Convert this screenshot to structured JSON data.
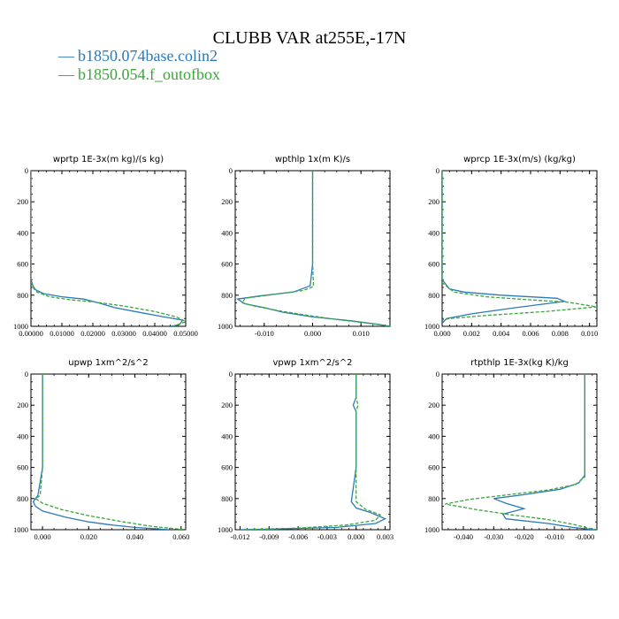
{
  "figure": {
    "title": "CLUBB VAR at255E,-17N",
    "legend": [
      {
        "name": "b1850.074base.colin2",
        "color": "#2a7ab9",
        "dash": "solid",
        "symbol": "—"
      },
      {
        "name": "b1850.054.f_outofbox",
        "color": "#3aa63a",
        "dash": "dashed",
        "symbol": "—"
      }
    ]
  },
  "chart_data": [
    {
      "type": "line",
      "title": "wprtp  1E-3x(m kg)/(s kg)",
      "xlim": [
        0,
        0.05
      ],
      "ylim": [
        1000,
        0
      ],
      "xticks": [
        0,
        0.01,
        0.02,
        0.03,
        0.04,
        0.05
      ],
      "xtick_labels": [
        "0.00000",
        "0.01000",
        "0.02000",
        "0.03000",
        "0.04000",
        "0.05000"
      ],
      "yticks": [
        0,
        200,
        400,
        600,
        800,
        1000
      ],
      "ytick_labels": [
        "0",
        "200",
        "400",
        "600",
        "800",
        "1000"
      ],
      "series": [
        {
          "values": [
            [
              0,
              0
            ],
            [
              0,
              500
            ],
            [
              0,
              700
            ],
            [
              0.001,
              760
            ],
            [
              0.004,
              790
            ],
            [
              0.01,
              810
            ],
            [
              0.017,
              825
            ],
            [
              0.022,
              850
            ],
            [
              0.027,
              880
            ],
            [
              0.035,
              910
            ],
            [
              0.043,
              940
            ],
            [
              0.049,
              960
            ],
            [
              0.048,
              990
            ],
            [
              0.045,
              1000
            ]
          ]
        },
        {
          "values": [
            [
              0,
              0
            ],
            [
              0,
              500
            ],
            [
              0,
              720
            ],
            [
              0.002,
              780
            ],
            [
              0.006,
              810
            ],
            [
              0.013,
              830
            ],
            [
              0.021,
              845
            ],
            [
              0.03,
              870
            ],
            [
              0.04,
              905
            ],
            [
              0.047,
              940
            ],
            [
              0.05,
              970
            ],
            [
              0.046,
              1000
            ]
          ]
        }
      ]
    },
    {
      "type": "line",
      "title": "wpthlp  1x(m K)/s",
      "xlim": [
        -0.016,
        0.016
      ],
      "ylim": [
        1000,
        0
      ],
      "xticks": [
        -0.01,
        0,
        0.01
      ],
      "xtick_labels": [
        "-0.010",
        "0.000",
        "0.010"
      ],
      "yticks": [
        0,
        200,
        400,
        600,
        800,
        1000
      ],
      "ytick_labels": [
        "0",
        "200",
        "400",
        "600",
        "800",
        "1000"
      ],
      "series": [
        {
          "values": [
            [
              0,
              0
            ],
            [
              0,
              300
            ],
            [
              0,
              600
            ],
            [
              -0.0005,
              740
            ],
            [
              -0.004,
              780
            ],
            [
              -0.011,
              805
            ],
            [
              -0.0155,
              825
            ],
            [
              -0.014,
              855
            ],
            [
              -0.01,
              880
            ],
            [
              -0.006,
              910
            ],
            [
              0,
              940
            ],
            [
              0.008,
              965
            ],
            [
              0.014,
              990
            ],
            [
              0.016,
              1000
            ]
          ]
        },
        {
          "values": [
            [
              0,
              0
            ],
            [
              0,
              300
            ],
            [
              0,
              600
            ],
            [
              0.0002,
              745
            ],
            [
              -0.002,
              770
            ],
            [
              -0.008,
              795
            ],
            [
              -0.014,
              820
            ],
            [
              -0.0145,
              850
            ],
            [
              -0.012,
              870
            ],
            [
              -0.007,
              900
            ],
            [
              -0.001,
              930
            ],
            [
              0.006,
              960
            ],
            [
              0.013,
              985
            ],
            [
              0.016,
              1000
            ]
          ]
        }
      ]
    },
    {
      "type": "line",
      "title": "wprcp  1E-3x(m/s) (kg/kg)",
      "xlim": [
        0,
        0.0105
      ],
      "ylim": [
        1000,
        0
      ],
      "xticks": [
        0,
        0.002,
        0.004,
        0.006,
        0.008,
        0.01
      ],
      "xtick_labels": [
        "0.000",
        "0.002",
        "0.004",
        "0.006",
        "0.008",
        "0.010"
      ],
      "yticks": [
        0,
        200,
        400,
        600,
        800,
        1000
      ],
      "ytick_labels": [
        "0",
        "200",
        "400",
        "600",
        "800",
        "1000"
      ],
      "series": [
        {
          "values": [
            [
              0,
              0
            ],
            [
              0,
              500
            ],
            [
              0,
              700
            ],
            [
              0.0005,
              760
            ],
            [
              0.0015,
              780
            ],
            [
              0.004,
              800
            ],
            [
              0.0078,
              820
            ],
            [
              0.0083,
              840
            ],
            [
              0.005,
              880
            ],
            [
              0.002,
              920
            ],
            [
              0.0003,
              950
            ],
            [
              0,
              980
            ]
          ]
        },
        {
          "values": [
            [
              0,
              0
            ],
            [
              0,
              500
            ],
            [
              0,
              720
            ],
            [
              0.0008,
              780
            ],
            [
              0.003,
              810
            ],
            [
              0.006,
              830
            ],
            [
              0.0085,
              845
            ],
            [
              0.0105,
              875
            ],
            [
              0.007,
              905
            ],
            [
              0.003,
              930
            ],
            [
              0.0005,
              950
            ],
            [
              0,
              960
            ]
          ]
        }
      ]
    },
    {
      "type": "line",
      "title": "upwp  1xm^2/s^2",
      "xlim": [
        -0.005,
        0.062
      ],
      "ylim": [
        1000,
        0
      ],
      "xticks": [
        0,
        0.02,
        0.04,
        0.06
      ],
      "xtick_labels": [
        "0.000",
        "0.020",
        "0.040",
        "0.060"
      ],
      "yticks": [
        0,
        200,
        400,
        600,
        800,
        1000
      ],
      "ytick_labels": [
        "0",
        "200",
        "400",
        "600",
        "800",
        "1000"
      ],
      "series": [
        {
          "values": [
            [
              0,
              0
            ],
            [
              0,
              200
            ],
            [
              0,
              600
            ],
            [
              -0.002,
              780
            ],
            [
              -0.004,
              820
            ],
            [
              -0.003,
              850
            ],
            [
              0,
              880
            ],
            [
              0.01,
              920
            ],
            [
              0.02,
              950
            ],
            [
              0.03,
              970
            ],
            [
              0.04,
              985
            ],
            [
              0.05,
              995
            ],
            [
              0.055,
              1000
            ]
          ]
        },
        {
          "values": [
            [
              0,
              0
            ],
            [
              0,
              200
            ],
            [
              0,
              600
            ],
            [
              -0.001,
              780
            ],
            [
              -0.003,
              800
            ],
            [
              0,
              830
            ],
            [
              0.008,
              870
            ],
            [
              0.02,
              910
            ],
            [
              0.035,
              950
            ],
            [
              0.048,
              980
            ],
            [
              0.062,
              1000
            ]
          ]
        }
      ]
    },
    {
      "type": "line",
      "title": "vpwp  1xm^2/s^2",
      "xlim": [
        -0.0125,
        0.0035
      ],
      "ylim": [
        1000,
        0
      ],
      "xticks": [
        -0.012,
        -0.009,
        -0.006,
        -0.003,
        0,
        0.003
      ],
      "xtick_labels": [
        "-0.012",
        "-0.009",
        "-0.006",
        "-0.003",
        "0.000",
        "0.003"
      ],
      "yticks": [
        0,
        200,
        400,
        600,
        800,
        1000
      ],
      "ytick_labels": [
        "0",
        "200",
        "400",
        "600",
        "800",
        "1000"
      ],
      "series": [
        {
          "values": [
            [
              0,
              0
            ],
            [
              0,
              150
            ],
            [
              -0.0003,
              200
            ],
            [
              0,
              240
            ],
            [
              0,
              600
            ],
            [
              -0.0005,
              820
            ],
            [
              0,
              860
            ],
            [
              0.0015,
              890
            ],
            [
              0.003,
              930
            ],
            [
              0.002,
              960
            ],
            [
              -0.002,
              985
            ],
            [
              -0.008,
              995
            ],
            [
              -0.012,
              1000
            ]
          ]
        },
        {
          "values": [
            [
              0,
              0
            ],
            [
              0,
              150
            ],
            [
              0.0002,
              200
            ],
            [
              0,
              240
            ],
            [
              0,
              600
            ],
            [
              0,
              820
            ],
            [
              0.001,
              870
            ],
            [
              0.0025,
              905
            ],
            [
              0.002,
              940
            ],
            [
              -0.001,
              970
            ],
            [
              -0.006,
              990
            ],
            [
              -0.0115,
              1000
            ]
          ]
        }
      ]
    },
    {
      "type": "line",
      "title": "rtpthlp  1E-3x(kg K)/kg",
      "xlim": [
        -0.047,
        0.004
      ],
      "ylim": [
        1000,
        0
      ],
      "xticks": [
        -0.04,
        -0.03,
        -0.02,
        -0.01,
        0
      ],
      "xtick_labels": [
        "-0.040",
        "-0.030",
        "-0.020",
        "-0.010",
        "-0.000"
      ],
      "yticks": [
        0,
        200,
        400,
        600,
        800,
        1000
      ],
      "ytick_labels": [
        "0",
        "200",
        "400",
        "600",
        "800",
        "1000"
      ],
      "series": [
        {
          "values": [
            [
              0,
              0
            ],
            [
              0,
              400
            ],
            [
              0,
              650
            ],
            [
              -0.002,
              700
            ],
            [
              -0.008,
              740
            ],
            [
              -0.02,
              775
            ],
            [
              -0.03,
              800
            ],
            [
              -0.026,
              830
            ],
            [
              -0.02,
              865
            ],
            [
              -0.027,
              900
            ],
            [
              -0.026,
              930
            ],
            [
              -0.012,
              960
            ],
            [
              -0.004,
              985
            ],
            [
              0.003,
              1000
            ]
          ]
        },
        {
          "values": [
            [
              0,
              0
            ],
            [
              0,
              400
            ],
            [
              0,
              660
            ],
            [
              -0.003,
              710
            ],
            [
              -0.012,
              745
            ],
            [
              -0.025,
              775
            ],
            [
              -0.038,
              805
            ],
            [
              -0.046,
              835
            ],
            [
              -0.036,
              870
            ],
            [
              -0.024,
              905
            ],
            [
              -0.012,
              935
            ],
            [
              -0.004,
              965
            ],
            [
              0.001,
              990
            ],
            [
              0.004,
              1000
            ]
          ]
        }
      ]
    }
  ]
}
